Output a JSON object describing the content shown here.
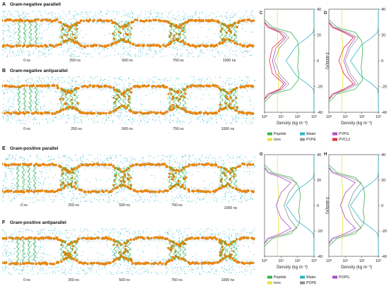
{
  "figure": {
    "panels_sim": [
      {
        "label": "A",
        "title": "Gram-negative parallell",
        "times": [
          "0 ns",
          "250 ns",
          "500 ns",
          "750 ns",
          "1000 ns"
        ]
      },
      {
        "label": "B",
        "title": "Gram-negative antiparallel",
        "times": [
          "0 ns",
          "250 ns",
          "500 ns",
          "750 ns",
          "1000 ns"
        ]
      },
      {
        "label": "E",
        "title": "Gram-positive parallel",
        "times": [
          "0 ns",
          "250 ns",
          "500 ns",
          "750 ns",
          "1000 ns"
        ]
      },
      {
        "label": "F",
        "title": "Gram-positive antiparallel",
        "times": [
          "0 ns",
          "250 ns",
          "500 ns",
          "750 ns",
          "1000 ns"
        ]
      }
    ],
    "colors": {
      "water": "#2bb5c4",
      "lipid_head": "#f08a0c",
      "peptide": "#3cb34a",
      "ions": "#e8e33c",
      "pvpe": "#9a9a9a",
      "pvpg": "#b44ac0",
      "pvcl2": "#e0303a",
      "pope": "#8f8f8f",
      "popg": "#a84cc4"
    },
    "icons": [
      "water-molecules",
      "lipid-headgroup-spheres",
      "peptide-helix"
    ]
  },
  "chart_data": [
    {
      "type": "line",
      "label": "C",
      "xlabel": "Density (kg m⁻³)",
      "ylabel": "z-axis(Å)",
      "xscale": "log",
      "xlim": [
        1,
        1000
      ],
      "ylim": [
        -40,
        40
      ],
      "xticks": [
        "10⁰",
        "10¹",
        "10²",
        "10³"
      ],
      "yticks": [
        "40",
        "20",
        "0",
        "-20",
        "-40"
      ],
      "series": [
        {
          "name": "Water",
          "color": "#2bb5c4",
          "x": [
            1000,
            1000,
            990,
            900,
            400,
            90,
            20,
            90,
            400,
            900,
            990,
            1000,
            1000
          ],
          "y": [
            40,
            30,
            26,
            22,
            18,
            12,
            0,
            -12,
            -18,
            -22,
            -26,
            -30,
            -40
          ]
        },
        {
          "name": "Peptide",
          "color": "#3cb34a",
          "x": [
            1,
            3,
            40,
            100,
            120,
            110,
            100,
            120,
            110,
            40,
            3,
            1
          ],
          "y": [
            32,
            26,
            22,
            15,
            8,
            0,
            -5,
            -10,
            -15,
            -22,
            -26,
            -32
          ]
        },
        {
          "name": "Ions",
          "color": "#e8e33c",
          "x": [
            6,
            6,
            6,
            7,
            7,
            6,
            6,
            7,
            7,
            6,
            6
          ],
          "y": [
            40,
            30,
            20,
            10,
            5,
            0,
            -5,
            -10,
            -20,
            -30,
            -40
          ]
        },
        {
          "name": "PVPE",
          "color": "#9a9a9a",
          "x": [
            1,
            2,
            15,
            30,
            8,
            4,
            8,
            30,
            15,
            2,
            1
          ],
          "y": [
            30,
            26,
            22,
            18,
            10,
            0,
            -10,
            -18,
            -22,
            -26,
            -30
          ]
        },
        {
          "name": "PVPG",
          "color": "#b44ac0",
          "x": [
            1,
            2,
            10,
            20,
            5,
            3,
            5,
            20,
            10,
            2,
            1
          ],
          "y": [
            30,
            26,
            22,
            18,
            10,
            0,
            -10,
            -18,
            -22,
            -26,
            -30
          ]
        },
        {
          "name": "PVCL2",
          "color": "#e0303a",
          "x": [
            1,
            1.5,
            8,
            15,
            3,
            2,
            3,
            15,
            8,
            1.5,
            1
          ],
          "y": [
            30,
            26,
            22,
            18,
            10,
            0,
            -10,
            -18,
            -22,
            -26,
            -30
          ]
        }
      ]
    },
    {
      "type": "line",
      "label": "D",
      "xlabel": "Density (kg m⁻³)",
      "ylabel": "z-axis(Å)",
      "xscale": "log",
      "xlim": [
        1,
        1000
      ],
      "ylim": [
        -40,
        40
      ],
      "xticks": [
        "10⁰",
        "10¹",
        "10²",
        "10³"
      ],
      "yticks": [
        "40",
        "20",
        "0",
        "-20",
        "-40"
      ],
      "series": [
        {
          "name": "Water",
          "color": "#2bb5c4",
          "x": [
            1000,
            1000,
            990,
            900,
            400,
            90,
            20,
            90,
            400,
            900,
            990,
            1000,
            1000
          ],
          "y": [
            40,
            30,
            26,
            22,
            18,
            12,
            0,
            -12,
            -18,
            -22,
            -26,
            -30,
            -40
          ]
        },
        {
          "name": "Peptide",
          "color": "#3cb34a",
          "x": [
            1,
            3,
            40,
            100,
            110,
            100,
            90,
            100,
            110,
            40,
            3,
            1
          ],
          "y": [
            32,
            26,
            22,
            15,
            8,
            0,
            -5,
            -10,
            -15,
            -22,
            -26,
            -32
          ]
        },
        {
          "name": "Ions",
          "color": "#e8e33c",
          "x": [
            6,
            6,
            6,
            7,
            7,
            6,
            6,
            7,
            7,
            6,
            6
          ],
          "y": [
            40,
            30,
            20,
            10,
            5,
            0,
            -5,
            -10,
            -20,
            -30,
            -40
          ]
        },
        {
          "name": "PVPE",
          "color": "#9a9a9a",
          "x": [
            1,
            2,
            15,
            60,
            20,
            10,
            20,
            60,
            15,
            2,
            1
          ],
          "y": [
            30,
            26,
            22,
            18,
            10,
            0,
            -10,
            -18,
            -22,
            -26,
            -30
          ]
        },
        {
          "name": "PVPG",
          "color": "#b44ac0",
          "x": [
            1,
            2,
            10,
            40,
            15,
            8,
            15,
            40,
            10,
            2,
            1
          ],
          "y": [
            30,
            26,
            22,
            18,
            10,
            0,
            -10,
            -18,
            -22,
            -26,
            -30
          ]
        },
        {
          "name": "PVCL2",
          "color": "#e0303a",
          "x": [
            1,
            1.5,
            8,
            30,
            8,
            4,
            8,
            30,
            8,
            1.5,
            1
          ],
          "y": [
            30,
            26,
            22,
            18,
            10,
            0,
            -10,
            -18,
            -22,
            -26,
            -30
          ]
        }
      ]
    },
    {
      "type": "line",
      "label": "G",
      "xlabel": "Density (kg m⁻³)",
      "ylabel": "z-axis(Å)",
      "xscale": "log",
      "xlim": [
        1,
        1000
      ],
      "ylim": [
        -40,
        40
      ],
      "xticks": [
        "10⁰",
        "10¹",
        "10²",
        "10³"
      ],
      "yticks": [
        "40",
        "20",
        "0",
        "-20",
        "-40"
      ],
      "series": [
        {
          "name": "Water",
          "color": "#2bb5c4",
          "x": [
            1000,
            1000,
            990,
            900,
            400,
            90,
            20,
            90,
            400,
            900,
            990,
            1000,
            1000
          ],
          "y": [
            40,
            30,
            26,
            22,
            18,
            12,
            0,
            -12,
            -18,
            -22,
            -26,
            -30,
            -40
          ]
        },
        {
          "name": "Peptide",
          "color": "#3cb34a",
          "x": [
            1,
            3,
            40,
            120,
            150,
            130,
            120,
            140,
            120,
            40,
            3,
            1
          ],
          "y": [
            32,
            26,
            22,
            15,
            8,
            0,
            -5,
            -10,
            -15,
            -22,
            -26,
            -32
          ]
        },
        {
          "name": "Ions",
          "color": "#e8e33c",
          "x": [
            6,
            6,
            6,
            7,
            7,
            6,
            6,
            7,
            7,
            6,
            6
          ],
          "y": [
            40,
            30,
            20,
            10,
            5,
            0,
            -5,
            -10,
            -20,
            -30,
            -40
          ]
        },
        {
          "name": "POPE",
          "color": "#8f8f8f",
          "x": [
            1,
            2,
            20,
            90,
            30,
            15,
            30,
            90,
            20,
            2,
            1
          ],
          "y": [
            30,
            26,
            22,
            18,
            10,
            0,
            -10,
            -18,
            -22,
            -26,
            -30
          ]
        },
        {
          "name": "POPG",
          "color": "#a84cc4",
          "x": [
            1,
            1.5,
            10,
            40,
            10,
            5,
            10,
            40,
            10,
            1.5,
            1
          ],
          "y": [
            30,
            26,
            22,
            18,
            10,
            0,
            -10,
            -18,
            -22,
            -26,
            -30
          ]
        }
      ]
    },
    {
      "type": "line",
      "label": "H",
      "xlabel": "Density (kg m⁻³)",
      "ylabel": "z-axis(Å)",
      "xscale": "log",
      "xlim": [
        1,
        1000
      ],
      "ylim": [
        -40,
        40
      ],
      "xticks": [
        "10⁰",
        "10¹",
        "10²",
        "10³"
      ],
      "yticks": [
        "40",
        "20",
        "0",
        "-20",
        "-40"
      ],
      "series": [
        {
          "name": "Water",
          "color": "#2bb5c4",
          "x": [
            1000,
            1000,
            990,
            900,
            400,
            90,
            20,
            90,
            400,
            900,
            990,
            1000,
            1000
          ],
          "y": [
            40,
            30,
            26,
            22,
            18,
            12,
            0,
            -12,
            -18,
            -22,
            -26,
            -30,
            -40
          ]
        },
        {
          "name": "Peptide",
          "color": "#3cb34a",
          "x": [
            1,
            3,
            40,
            120,
            150,
            130,
            120,
            140,
            120,
            40,
            3,
            1
          ],
          "y": [
            32,
            26,
            22,
            15,
            8,
            0,
            -5,
            -10,
            -15,
            -22,
            -26,
            -32
          ]
        },
        {
          "name": "Ions",
          "color": "#e8e33c",
          "x": [
            6,
            6,
            6,
            7,
            7,
            6,
            6,
            7,
            7,
            6,
            6
          ],
          "y": [
            40,
            30,
            20,
            10,
            5,
            0,
            -5,
            -10,
            -20,
            -30,
            -40
          ]
        },
        {
          "name": "POPE",
          "color": "#8f8f8f",
          "x": [
            1,
            2,
            20,
            90,
            30,
            15,
            30,
            90,
            20,
            2,
            1
          ],
          "y": [
            30,
            26,
            22,
            18,
            10,
            0,
            -10,
            -18,
            -22,
            -26,
            -30
          ]
        },
        {
          "name": "POPG",
          "color": "#a84cc4",
          "x": [
            1,
            1.5,
            10,
            40,
            10,
            5,
            10,
            40,
            10,
            1.5,
            1
          ],
          "y": [
            30,
            26,
            22,
            18,
            10,
            0,
            -10,
            -18,
            -22,
            -26,
            -30
          ]
        }
      ]
    }
  ],
  "legends": {
    "gram_negative": [
      {
        "name": "Peptide",
        "color": "#3cb34a"
      },
      {
        "name": "Water",
        "color": "#2bb5c4"
      },
      {
        "name": "PVPG",
        "color": "#b44ac0"
      },
      {
        "name": "Ions",
        "color": "#e8e33c"
      },
      {
        "name": "PVPE",
        "color": "#9a9a9a"
      },
      {
        "name": "PVCL2",
        "color": "#e0303a"
      }
    ],
    "gram_positive": [
      {
        "name": "Peptide",
        "color": "#3cb34a"
      },
      {
        "name": "Water",
        "color": "#2bb5c4"
      },
      {
        "name": "POPG",
        "color": "#a84cc4"
      },
      {
        "name": "Ions",
        "color": "#e8e33c"
      },
      {
        "name": "POPE",
        "color": "#8f8f8f"
      }
    ]
  }
}
